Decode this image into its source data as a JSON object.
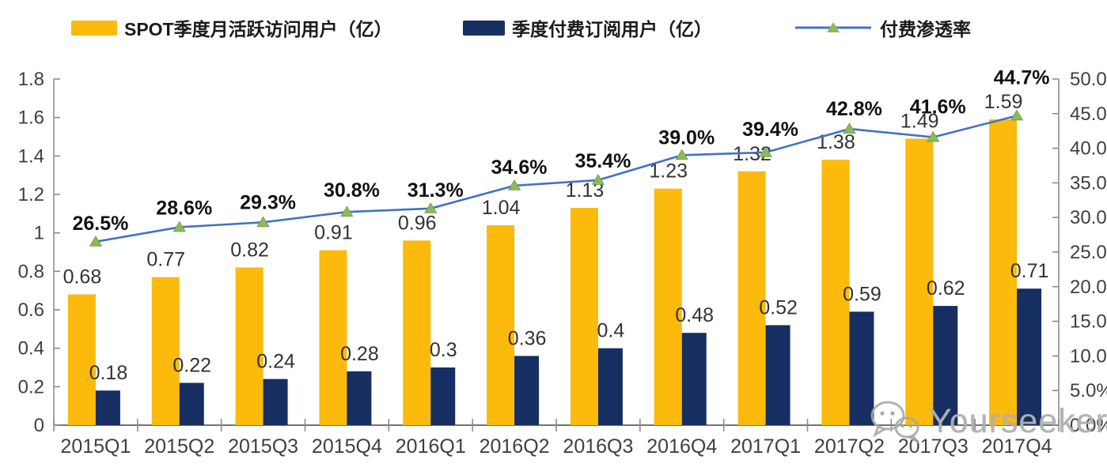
{
  "legend": {
    "items": [
      {
        "label": "SPOT季度月活跃访问用户（亿）",
        "type": "bar",
        "color": "#FBBA0C"
      },
      {
        "label": "季度付费订阅用户（亿）",
        "type": "bar",
        "color": "#172E63"
      },
      {
        "label": "付费渗透率",
        "type": "line",
        "color": "#4472C4",
        "marker_color": "#8CBA58"
      }
    ]
  },
  "watermark": {
    "text": "Yourseeker",
    "icon": "wechat-icon"
  },
  "colors": {
    "mau_bar": "#FBBA0C",
    "subs_bar": "#172E63",
    "line": "#4472C4",
    "marker": "#8CBA58",
    "marker_edge": "#6E9C42",
    "axis": "#8C8C8C",
    "axis_text": "#3F3F3F",
    "bar_label": "#333333",
    "pct_label": "#111111"
  },
  "chart_data": {
    "type": "combo-bar-line",
    "title": "",
    "categories": [
      "2015Q1",
      "2015Q2",
      "2015Q3",
      "2015Q4",
      "2016Q1",
      "2016Q2",
      "2016Q3",
      "2016Q4",
      "2017Q1",
      "2017Q2",
      "2017Q3",
      "2017Q4"
    ],
    "series": [
      {
        "name": "SPOT季度月活跃访问用户（亿）",
        "type": "bar",
        "axis": "left",
        "color": "#FBBA0C",
        "values": [
          0.68,
          0.77,
          0.82,
          0.91,
          0.96,
          1.04,
          1.13,
          1.23,
          1.32,
          1.38,
          1.49,
          1.59
        ],
        "labels": [
          "0.68",
          "0.77",
          "0.82",
          "0.91",
          "0.96",
          "1.04",
          "1.13",
          "1.23",
          "1.32",
          "1.38",
          "1.49",
          "1.59"
        ]
      },
      {
        "name": "季度付费订阅用户（亿）",
        "type": "bar",
        "axis": "left",
        "color": "#172E63",
        "values": [
          0.18,
          0.22,
          0.24,
          0.28,
          0.3,
          0.36,
          0.4,
          0.48,
          0.52,
          0.59,
          0.62,
          0.71
        ],
        "labels": [
          "0.18",
          "0.22",
          "0.24",
          "0.28",
          "0.3",
          "0.36",
          "0.4",
          "0.48",
          "0.52",
          "0.59",
          "0.62",
          "0.71"
        ]
      },
      {
        "name": "付费渗透率",
        "type": "line",
        "axis": "right",
        "color": "#4472C4",
        "marker": "triangle",
        "marker_color": "#8CBA58",
        "values": [
          26.5,
          28.6,
          29.3,
          30.8,
          31.3,
          34.6,
          35.4,
          39.0,
          39.4,
          42.8,
          41.6,
          44.7
        ],
        "labels": [
          "26.5%",
          "28.6%",
          "29.3%",
          "30.8%",
          "31.3%",
          "34.6%",
          "35.4%",
          "39.0%",
          "39.4%",
          "42.8%",
          "41.6%",
          "44.7%"
        ],
        "label_dy": [
          -24,
          -25,
          -26,
          -28,
          -24,
          -24,
          -25,
          -23,
          -30,
          -26,
          -39,
          -49
        ]
      }
    ],
    "left_axis": {
      "min": 0,
      "max": 1.8,
      "step": 0.2,
      "ticks": [
        "1.8",
        "1.6",
        "1.4",
        "1.2",
        "1",
        "0.8",
        "0.6",
        "0.4",
        "0.2",
        "0"
      ]
    },
    "right_axis": {
      "min": 0,
      "max": 50,
      "step": 5,
      "ticks": [
        "50.0%",
        "45.0%",
        "40.0%",
        "35.0%",
        "30.0%",
        "25.0%",
        "20.0%",
        "15.0%",
        "10.0%",
        "5.0%",
        "0.0%"
      ]
    },
    "grid": false,
    "legend_position": "top"
  }
}
